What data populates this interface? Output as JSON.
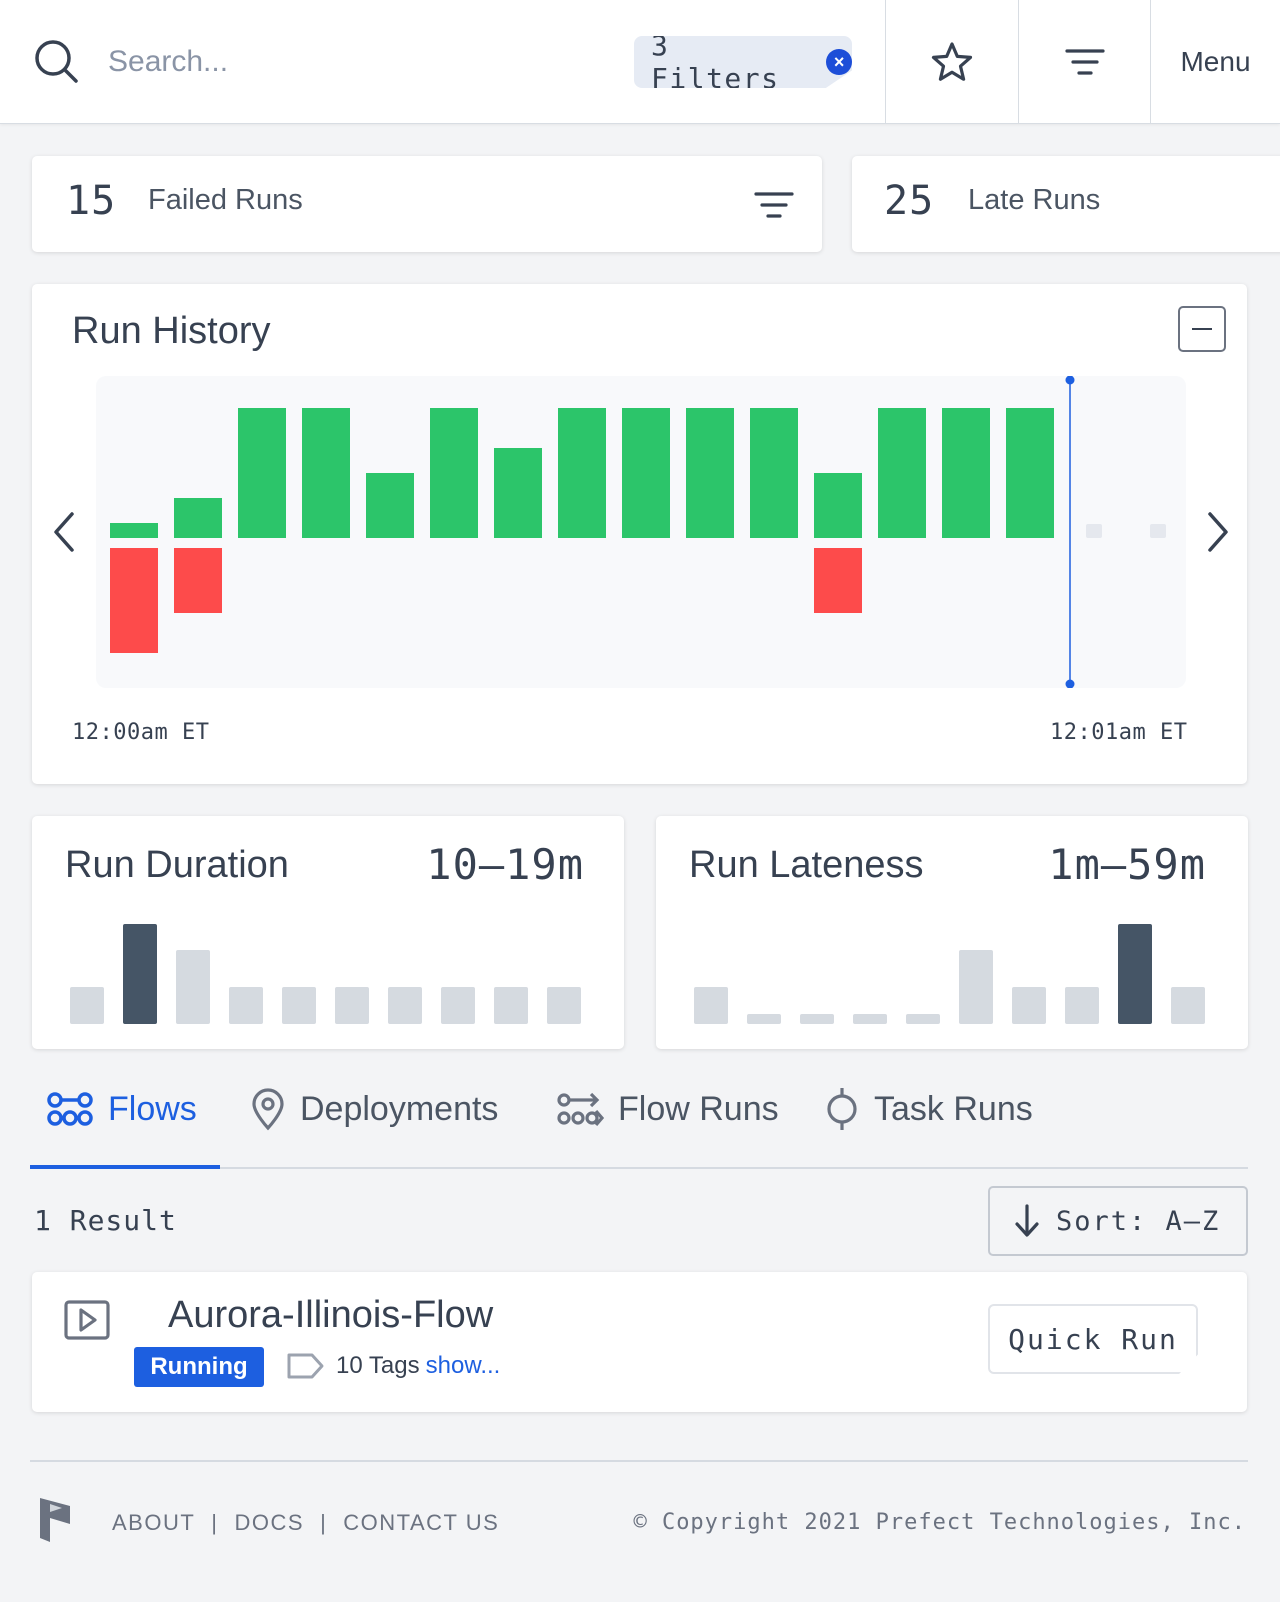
{
  "search": {
    "placeholder": "Search..."
  },
  "filters_chip": {
    "label": "3 Filters"
  },
  "header": {
    "menu_label": "Menu"
  },
  "stats": {
    "failed": {
      "count": "15",
      "label": "Failed Runs"
    },
    "late": {
      "count": "25",
      "label": "Late Runs"
    }
  },
  "run_history": {
    "title": "Run History",
    "start_label": "12:00am ET",
    "end_label": "12:01am ET"
  },
  "colors": {
    "success": "#2cc56a",
    "failed": "#fd4b4b",
    "accent": "#1d5fe0",
    "dist_highlight": "#455566",
    "dist_bar": "#d5dae0"
  },
  "chart_data": [
    {
      "type": "bar",
      "title": "Run History",
      "categories": [
        "1",
        "2",
        "3",
        "4",
        "5",
        "6",
        "7",
        "8",
        "9",
        "10",
        "11",
        "12",
        "13",
        "14",
        "15",
        "16",
        "17"
      ],
      "series": [
        {
          "values": [
            1.5,
            4,
            13,
            13,
            6.5,
            13,
            9,
            13,
            13,
            13,
            13,
            6.5,
            13,
            13,
            13,
            0,
            0
          ]
        },
        {
          "values": [
            10.5,
            6.5,
            0,
            0,
            0,
            0,
            0,
            0,
            0,
            0,
            0,
            6.5,
            0,
            0,
            0,
            0,
            0
          ]
        }
      ],
      "xlabel": "",
      "ylabel": ""
    },
    {
      "type": "bar",
      "title": "Run Duration",
      "highlight": "10–19m",
      "categories": [
        "1",
        "2",
        "3",
        "4",
        "5",
        "6",
        "7",
        "8",
        "9",
        "10"
      ],
      "values": [
        0.37,
        1,
        0.74,
        0.37,
        0.37,
        0.37,
        0.37,
        0.37,
        0.37,
        0.37
      ],
      "highlight_index": 1
    },
    {
      "type": "bar",
      "title": "Run Lateness",
      "highlight": "1m–59m",
      "categories": [
        "1",
        "2",
        "3",
        "4",
        "5",
        "6",
        "7",
        "8",
        "9",
        "10"
      ],
      "values": [
        0.37,
        0.1,
        0.1,
        0.1,
        0.1,
        0.74,
        0.37,
        0.37,
        1,
        0.37
      ],
      "highlight_index": 8
    }
  ],
  "distributions": {
    "duration": {
      "title": "Run Duration",
      "range": "10–19m"
    },
    "lateness": {
      "title": "Run Lateness",
      "range": "1m–59m"
    }
  },
  "tabs": [
    {
      "label": "Flows",
      "icon": "flows-icon",
      "active": true
    },
    {
      "label": "Deployments",
      "icon": "map-pin-icon",
      "active": false
    },
    {
      "label": "Flow Runs",
      "icon": "flow-runs-icon",
      "active": false
    },
    {
      "label": "Task Runs",
      "icon": "task-run-icon",
      "active": false
    }
  ],
  "results": {
    "count_label": "1 Result",
    "sort_label": "Sort: A–Z"
  },
  "flow": {
    "name": "Aurora-Illinois-Flow",
    "status": "Running",
    "tags_label": "10 Tags",
    "tags_link": "show...",
    "quick_run": "Quick Run"
  },
  "footer": {
    "links": [
      "ABOUT",
      "DOCS",
      "CONTACT US"
    ],
    "separator": "|",
    "copyright": "© Copyright 2021 Prefect Technologies, Inc."
  }
}
